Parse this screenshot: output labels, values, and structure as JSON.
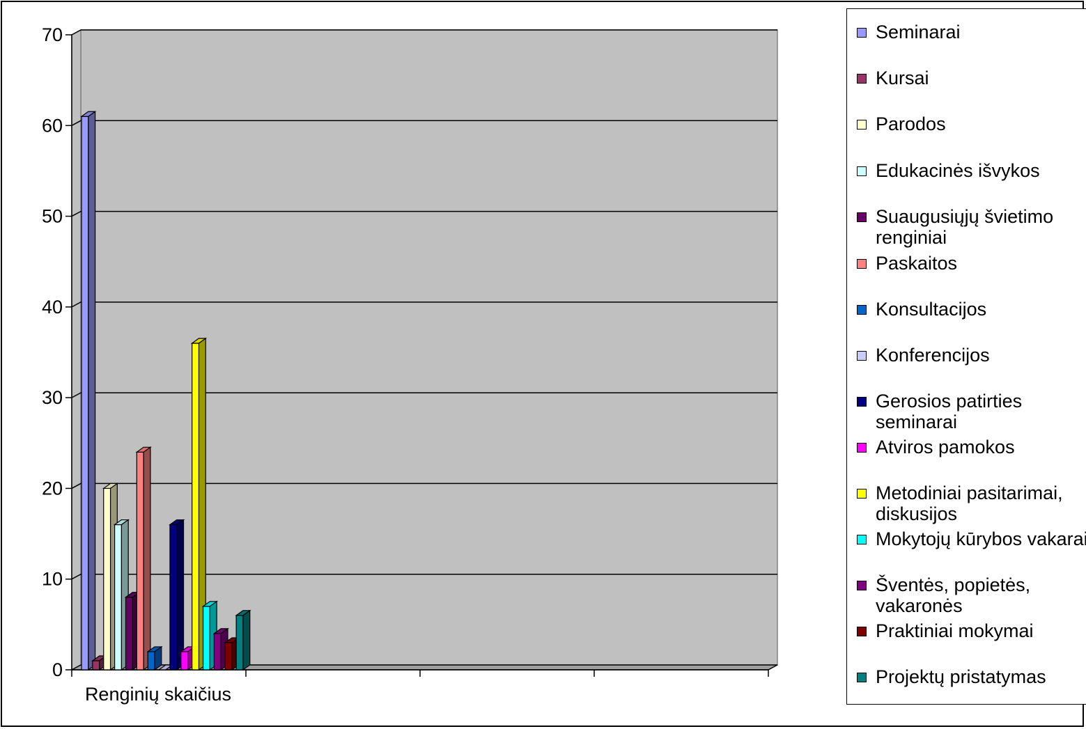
{
  "chart_data": {
    "type": "bar",
    "categories": [
      "Renginių skaičius"
    ],
    "ylim": [
      0,
      70
    ],
    "yticks": [
      0,
      10,
      20,
      30,
      40,
      50,
      60,
      70
    ],
    "grid": true,
    "legend_position": "right",
    "series": [
      {
        "name": "Seminarai",
        "values": [
          61
        ],
        "color": "#9999ff"
      },
      {
        "name": "Kursai",
        "values": [
          1
        ],
        "color": "#993366"
      },
      {
        "name": "Parodos",
        "values": [
          20
        ],
        "color": "#ffffcc"
      },
      {
        "name": "Edukacinės išvykos",
        "values": [
          16
        ],
        "color": "#ccffff"
      },
      {
        "name": "Suaugusiųjų švietimo renginiai",
        "values": [
          8
        ],
        "color": "#660066"
      },
      {
        "name": "Paskaitos",
        "values": [
          24
        ],
        "color": "#ff8080"
      },
      {
        "name": "Konsultacijos",
        "values": [
          2
        ],
        "color": "#0066cc"
      },
      {
        "name": "Konferencijos",
        "values": [
          0
        ],
        "color": "#ccccff"
      },
      {
        "name": "Gerosios patirties seminarai",
        "values": [
          16
        ],
        "color": "#000080"
      },
      {
        "name": "Atviros pamokos",
        "values": [
          2
        ],
        "color": "#ff00ff"
      },
      {
        "name": "Metodiniai pasitarimai, diskusijos",
        "values": [
          36
        ],
        "color": "#ffff00"
      },
      {
        "name": "Mokytojų kūrybos vakarai",
        "values": [
          7
        ],
        "color": "#00ffff"
      },
      {
        "name": "Šventės, popietės, vakaronės",
        "values": [
          4
        ],
        "color": "#800080"
      },
      {
        "name": "Praktiniai mokymai",
        "values": [
          3
        ],
        "color": "#800000"
      },
      {
        "name": "Projektų pristatymas",
        "values": [
          6
        ],
        "color": "#008080"
      }
    ]
  },
  "colors": {
    "plot_background": "#c0c0c0",
    "gridline": "#000000"
  }
}
